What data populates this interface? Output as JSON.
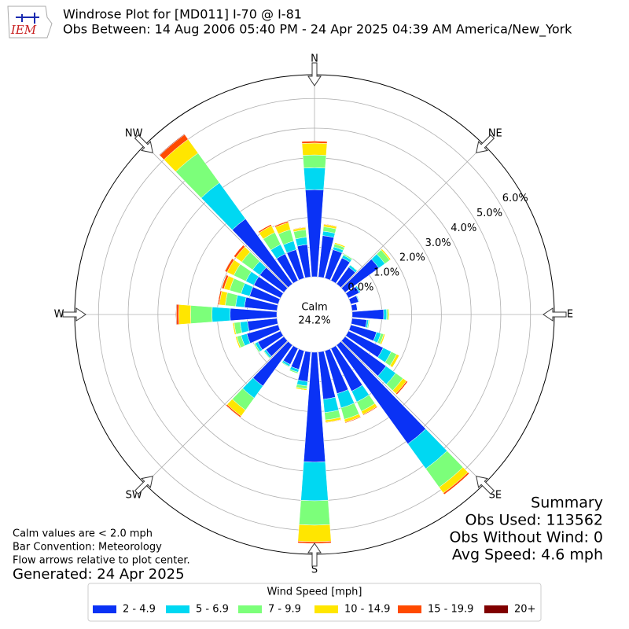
{
  "chart_data": {
    "type": "windrose",
    "logo_text": "IEM",
    "title": "Windrose Plot for [MD011] I-70 @ I-81",
    "subtitle": "Obs Between: 14 Aug 2006 05:40 PM - 24 Apr 2025 04:39 AM America/New_York",
    "x": [
      0,
      10,
      20,
      30,
      40,
      50,
      60,
      70,
      80,
      90,
      100,
      110,
      120,
      130,
      140,
      150,
      160,
      170,
      180,
      190,
      200,
      210,
      220,
      230,
      240,
      250,
      260,
      270,
      280,
      290,
      300,
      310,
      320,
      330,
      340,
      350
    ],
    "xlim": [
      0,
      360
    ],
    "xticks": [
      {
        "value": 0,
        "label": "N"
      },
      {
        "value": 45,
        "label": "NE"
      },
      {
        "value": 90,
        "label": "E"
      },
      {
        "value": 135,
        "label": "SE"
      },
      {
        "value": 180,
        "label": "S"
      },
      {
        "value": 225,
        "label": "SW"
      },
      {
        "value": 270,
        "label": "W"
      },
      {
        "value": 315,
        "label": "NW"
      }
    ],
    "ylim": [
      0,
      6.8
    ],
    "yticks": [
      {
        "value": 0,
        "label": "0.0%"
      },
      {
        "value": 1,
        "label": "1.0%"
      },
      {
        "value": 2,
        "label": "2.0%"
      },
      {
        "value": 3,
        "label": "3.0%"
      },
      {
        "value": 4,
        "label": "4.0%"
      },
      {
        "value": 5,
        "label": "5.0%"
      },
      {
        "value": 6,
        "label": "6.0%"
      }
    ],
    "grid": true,
    "calm_label": "Calm",
    "calm_value": 24.2,
    "calm_value_label": "24.2%",
    "legend_title": "Wind Speed [mph]",
    "series": [
      {
        "name": "2 - 4.9",
        "color": "#0a32f5",
        "values": [
          2.93,
          1.4,
          1.0,
          0.85,
          0.7,
          1.4,
          0.4,
          0.27,
          0.18,
          1.06,
          0.5,
          0.9,
          1.3,
          1.7,
          4.1,
          1.6,
          1.5,
          1.6,
          3.7,
          1.0,
          0.65,
          0.6,
          1.7,
          0.75,
          0.85,
          1.1,
          1.0,
          1.57,
          1.1,
          1.0,
          1.0,
          1.0,
          2.7,
          1.0,
          1.0,
          1.1
        ]
      },
      {
        "name": "5 - 6.9",
        "color": "#00d8f2",
        "values": [
          0.74,
          0.15,
          0.1,
          0.1,
          0.08,
          0.25,
          0.05,
          0.03,
          0.02,
          0.1,
          0.06,
          0.15,
          0.3,
          0.4,
          1.03,
          0.4,
          0.5,
          0.45,
          1.3,
          0.15,
          0.1,
          0.07,
          0.5,
          0.07,
          0.1,
          0.2,
          0.25,
          0.61,
          0.3,
          0.3,
          0.3,
          0.3,
          1.5,
          0.35,
          0.3,
          0.25
        ]
      },
      {
        "name": "7 - 9.9",
        "color": "#7cff7a",
        "values": [
          0.43,
          0.15,
          0.1,
          0.05,
          0.02,
          0.2,
          0,
          0,
          0,
          0.05,
          0.04,
          0.1,
          0.2,
          0.3,
          0.77,
          0.35,
          0.4,
          0.25,
          0.82,
          0.1,
          0.05,
          0.03,
          0.5,
          0.03,
          0.05,
          0.15,
          0.2,
          0.72,
          0.35,
          0.4,
          0.45,
          0.45,
          1.23,
          0.45,
          0.4,
          0.25
        ]
      },
      {
        "name": "10 - 14.9",
        "color": "#ffe600",
        "values": [
          0.4,
          0.08,
          0.05,
          0,
          0,
          0.05,
          0,
          0,
          0,
          0.04,
          0,
          0.05,
          0.1,
          0.15,
          0.24,
          0.12,
          0.1,
          0.08,
          0.56,
          0.05,
          0,
          0,
          0.25,
          0,
          0,
          0.05,
          0.05,
          0.4,
          0.2,
          0.2,
          0.25,
          0.25,
          0.57,
          0.25,
          0.25,
          0.08
        ]
      },
      {
        "name": "15 - 19.9",
        "color": "#ff4a00",
        "values": [
          0.07,
          0.02,
          0,
          0,
          0,
          0,
          0,
          0,
          0,
          0,
          0,
          0,
          0,
          0.05,
          0.06,
          0.03,
          0.03,
          0.02,
          0.06,
          0,
          0,
          0,
          0.05,
          0,
          0,
          0,
          0,
          0.08,
          0.05,
          0.08,
          0.08,
          0.08,
          0.2,
          0.05,
          0.05,
          0.02
        ]
      },
      {
        "name": "20+",
        "color": "#800000",
        "values": [
          0,
          0,
          0,
          0,
          0,
          0,
          0,
          0,
          0,
          0,
          0,
          0,
          0,
          0,
          0,
          0,
          0,
          0,
          0,
          0,
          0,
          0,
          0,
          0,
          0,
          0,
          0,
          0.02,
          0,
          0,
          0.01,
          0,
          0.02,
          0,
          0,
          0
        ]
      }
    ],
    "summary": [
      "Summary",
      "Obs Used: 113562",
      "Obs Without Wind: 0",
      "Avg Speed: 4.6 mph"
    ],
    "notes": [
      "Calm values are < 2.0 mph",
      "Bar Convention: Meteorology",
      "Flow arrows relative to plot center."
    ],
    "generated": "Generated: 24 Apr 2025"
  }
}
